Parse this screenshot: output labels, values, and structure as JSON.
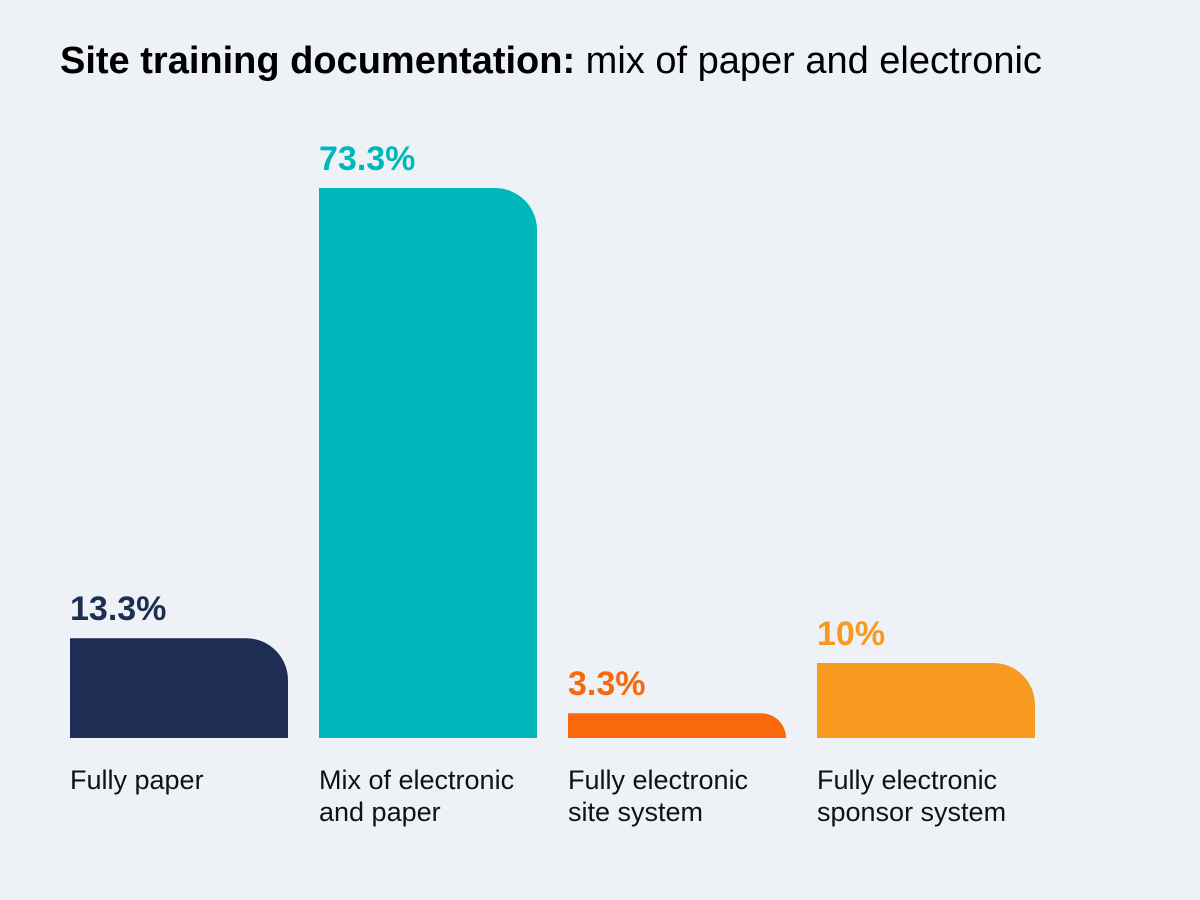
{
  "title": {
    "strong": "Site training documentation:",
    "light": " mix of paper and electronic"
  },
  "chart_data": {
    "type": "bar",
    "categories": [
      [
        "Fully paper"
      ],
      [
        "Mix of electronic",
        "and paper"
      ],
      [
        "Fully electronic",
        "site system"
      ],
      [
        "Fully electronic",
        "sponsor system"
      ]
    ],
    "values": [
      13.3,
      73.3,
      3.3,
      10
    ],
    "value_labels": [
      "13.3%",
      "73.3%",
      "3.3%",
      "10%"
    ],
    "colors": [
      "#1e2d53",
      "#00b7bb",
      "#f7690a",
      "#f89a20"
    ],
    "ylim": [
      0,
      100
    ],
    "grid": false,
    "legend": "none"
  }
}
